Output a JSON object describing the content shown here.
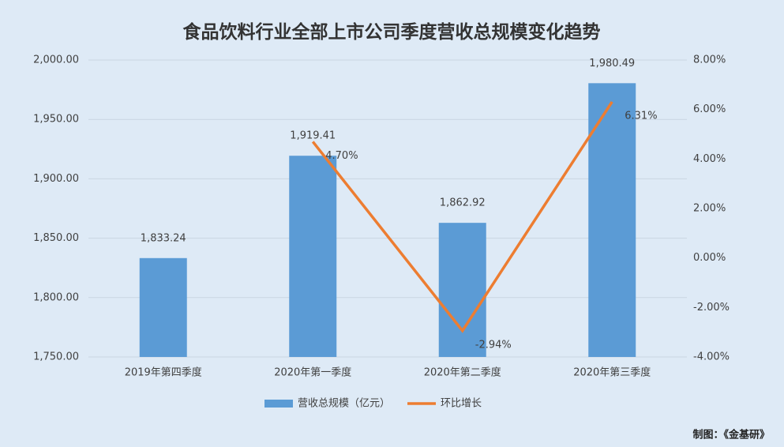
{
  "chart_data": {
    "type": "bar_line",
    "title": "食品饮料行业全部上市公司季度营收总规模变化趋势",
    "categories": [
      "2019年第四季度",
      "2020年第一季度",
      "2020年第二季度",
      "2020年第三季度"
    ],
    "series": [
      {
        "name": "营收总规模（亿元）",
        "type": "bar",
        "color": "#5b9bd5",
        "values": [
          1833.24,
          1919.41,
          1862.92,
          1980.49
        ],
        "value_labels": [
          "1,833.24",
          "1,919.41",
          "1,862.92",
          "1,980.49"
        ]
      },
      {
        "name": "环比增长",
        "type": "line",
        "axis": "y2",
        "color": "#ed7d31",
        "values": [
          null,
          4.7,
          -2.94,
          6.31
        ],
        "value_labels": [
          null,
          "4.70%",
          "-2.94%",
          "6.31%"
        ]
      }
    ],
    "ylim": [
      1750,
      2000
    ],
    "yticks": [
      {
        "value": 1750,
        "label": "1,750.00"
      },
      {
        "value": 1800,
        "label": "1,800.00"
      },
      {
        "value": 1850,
        "label": "1,850.00"
      },
      {
        "value": 1900,
        "label": "1,900.00"
      },
      {
        "value": 1950,
        "label": "1,950.00"
      },
      {
        "value": 2000,
        "label": "2,000.00"
      }
    ],
    "y2lim": [
      -4,
      8
    ],
    "y2ticks": [
      {
        "value": -4,
        "label": "-4.00%"
      },
      {
        "value": -2,
        "label": "-2.00%"
      },
      {
        "value": 0,
        "label": "0.00%"
      },
      {
        "value": 2,
        "label": "2.00%"
      },
      {
        "value": 4,
        "label": "4.00%"
      },
      {
        "value": 6,
        "label": "6.00%"
      },
      {
        "value": 8,
        "label": "8.00%"
      }
    ],
    "grid": true,
    "legend": "bottom",
    "note": "制图：《金基研》"
  }
}
